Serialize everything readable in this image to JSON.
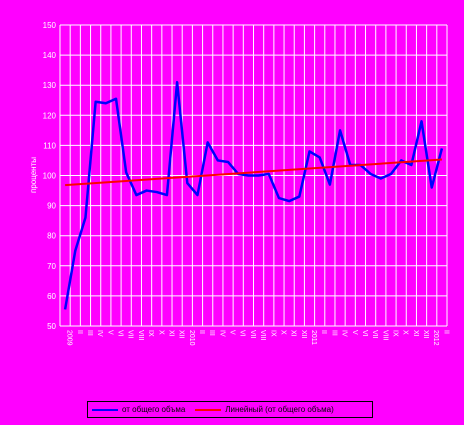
{
  "chart_data": {
    "type": "line",
    "title": "",
    "xlabel": "",
    "ylabel": "проценты",
    "ylim": [
      50,
      150
    ],
    "yticks": [
      50,
      60,
      70,
      80,
      90,
      100,
      110,
      120,
      130,
      140,
      150
    ],
    "grid": true,
    "x_tick_labels": [
      "2009",
      "II",
      "III",
      "IV",
      "V",
      "VI",
      "VII",
      "VIII",
      "IX",
      "X",
      "XI",
      "XII",
      "2010",
      "II",
      "III",
      "IV",
      "V",
      "VI",
      "VII",
      "VIII",
      "IX",
      "X",
      "XI",
      "XII",
      "2011",
      "II",
      "III",
      "IV",
      "V",
      "VI",
      "VII",
      "VIII",
      "IX",
      "X",
      "XI",
      "XII",
      "2012",
      "II"
    ],
    "series": [
      {
        "name": "от общего объма",
        "color": "#0000ff",
        "values": [
          55.5,
          75,
          86,
          124.5,
          124,
          125.5,
          101,
          93.5,
          95,
          94.5,
          93.5,
          131,
          97.5,
          93.5,
          111,
          105,
          104.5,
          100.5,
          100,
          100,
          100.5,
          92.5,
          91.5,
          93,
          108,
          106,
          97,
          115,
          103.5,
          103.5,
          100.5,
          99,
          100.5,
          105,
          103.5,
          118,
          96,
          109
        ]
      },
      {
        "name": "Линейный (от общего объма)",
        "color": "#ff0000",
        "values": [
          96.8,
          105.3
        ]
      }
    ],
    "legend_position": "bottom"
  }
}
